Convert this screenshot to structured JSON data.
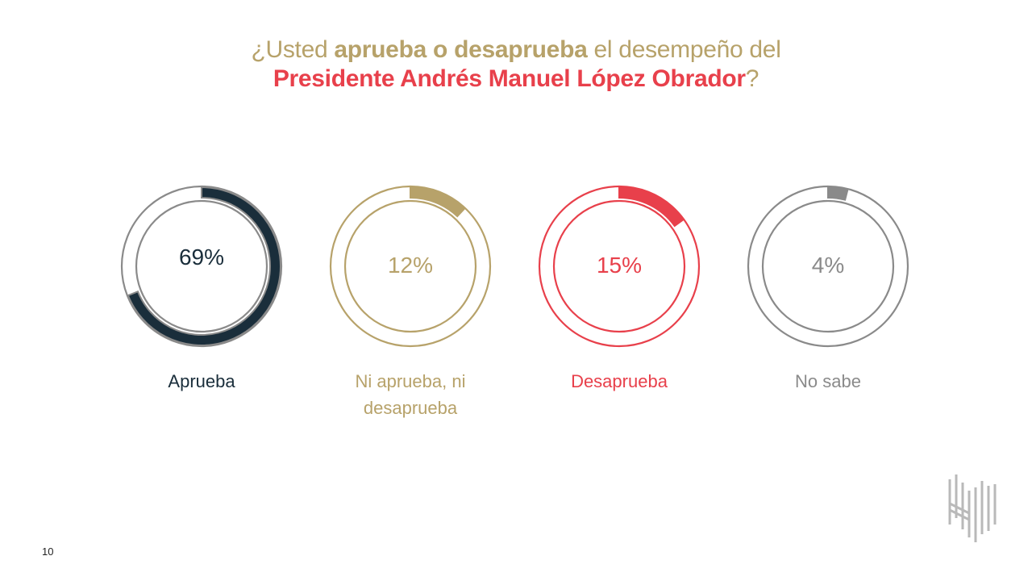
{
  "title": {
    "line1_pre": "¿Usted ",
    "line1_bold": "aprueba o desaprueba",
    "line1_post": " el desempeño del",
    "line2_bold": "Presidente Andrés Manuel López Obrador",
    "line2_post": "?"
  },
  "chart_data": {
    "type": "pie",
    "style": "donut",
    "categories": [
      "Aprueba",
      "Ni aprueba, ni desaprueba",
      "Desaprueba",
      "No sabe"
    ],
    "values": [
      69,
      12,
      15,
      4
    ],
    "value_labels": [
      "69%",
      "12%",
      "15%",
      "4%"
    ],
    "label_lines": [
      [
        "Aprueba"
      ],
      [
        "Ni aprueba, ni",
        "desaprueba"
      ],
      [
        "Desaprueba"
      ],
      [
        "No sabe"
      ]
    ],
    "colors": [
      "#1a2e3b",
      "#b7a26a",
      "#e8404b",
      "#8a8a8a"
    ]
  },
  "page_number": "10"
}
